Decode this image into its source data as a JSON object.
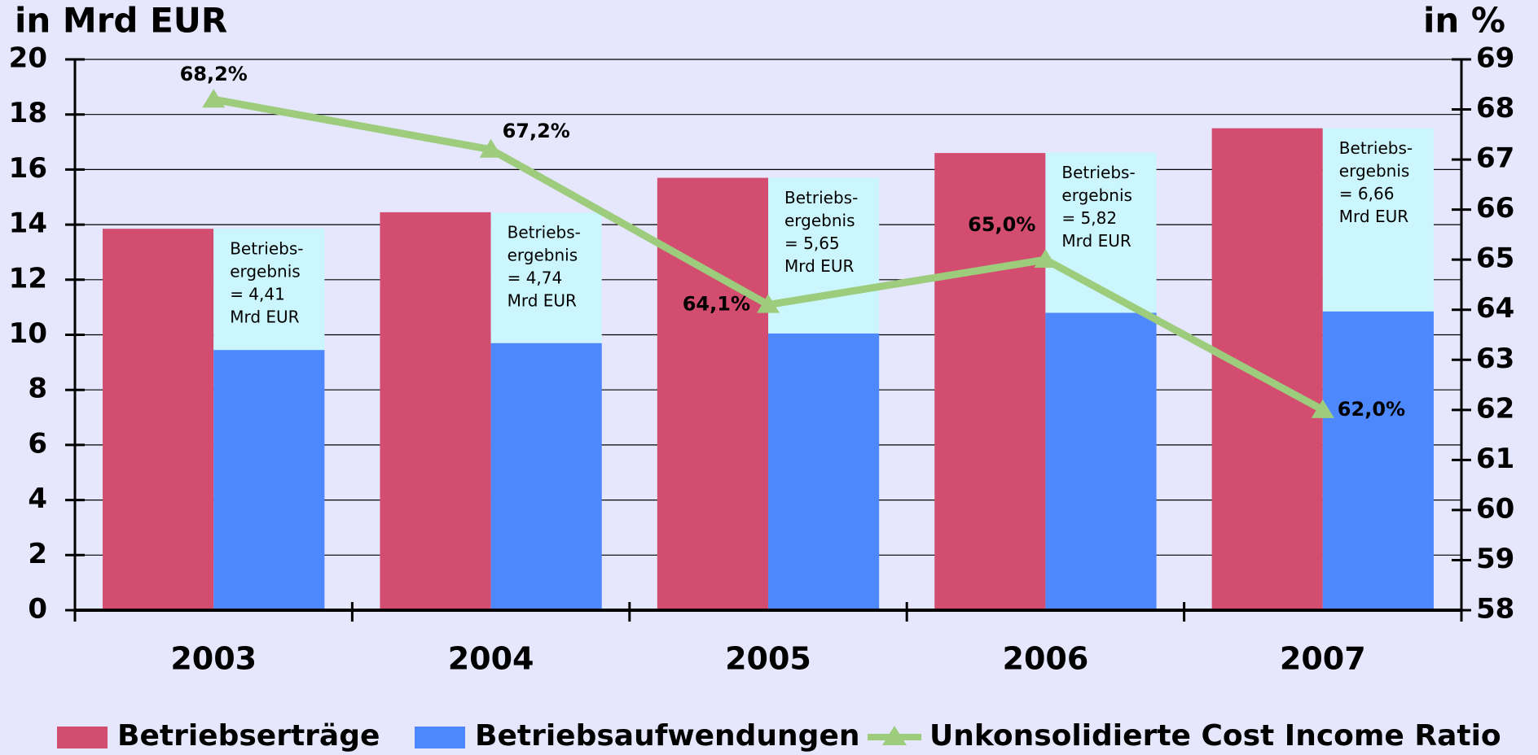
{
  "chart_data": {
    "type": "bar",
    "y_axis_label": "in Mrd EUR",
    "y2_axis_label": "in %",
    "categories": [
      "2003",
      "2004",
      "2005",
      "2006",
      "2007"
    ],
    "series": [
      {
        "name": "Betriebserträge",
        "color": "#d24d6f",
        "values": [
          13.85,
          14.45,
          15.7,
          16.6,
          17.5
        ]
      },
      {
        "name": "Betriebsaufwendungen",
        "color": "#4d88ff",
        "values": [
          9.45,
          9.7,
          10.05,
          10.8,
          10.85
        ]
      },
      {
        "name": "Unkonsolidierte Cost Income Ratio",
        "color": "#9ccc7c",
        "type": "line",
        "axis": "y2",
        "values": [
          68.2,
          67.2,
          64.1,
          65.0,
          62.0
        ],
        "value_labels": [
          "68,2%",
          "67,2%",
          "64,1%",
          "65,0%",
          "62,0%"
        ]
      }
    ],
    "stacked_segment": {
      "color": "#ccf6fd",
      "values": [
        4.41,
        4.74,
        5.65,
        5.82,
        6.66
      ],
      "value_labels": [
        [
          "Betriebs-",
          "ergebnis",
          "= 4,41",
          "Mrd EUR"
        ],
        [
          "Betriebs-",
          "ergebnis",
          "= 4,74",
          "Mrd EUR"
        ],
        [
          "Betriebs-",
          "ergebnis",
          "= 5,65",
          "Mrd EUR"
        ],
        [
          "Betriebs-",
          "ergebnis",
          "= 5,82",
          "Mrd EUR"
        ],
        [
          "Betriebs-",
          "ergebnis",
          "= 6,66",
          "Mrd EUR"
        ]
      ]
    },
    "ylim": [
      0,
      20
    ],
    "yticks": [
      0,
      2,
      4,
      6,
      8,
      10,
      12,
      14,
      16,
      18,
      20
    ],
    "y2lim": [
      58,
      69
    ],
    "y2ticks": [
      58,
      59,
      60,
      61,
      62,
      63,
      64,
      65,
      66,
      67,
      68,
      69
    ],
    "grid": true,
    "legend": "bottom"
  }
}
